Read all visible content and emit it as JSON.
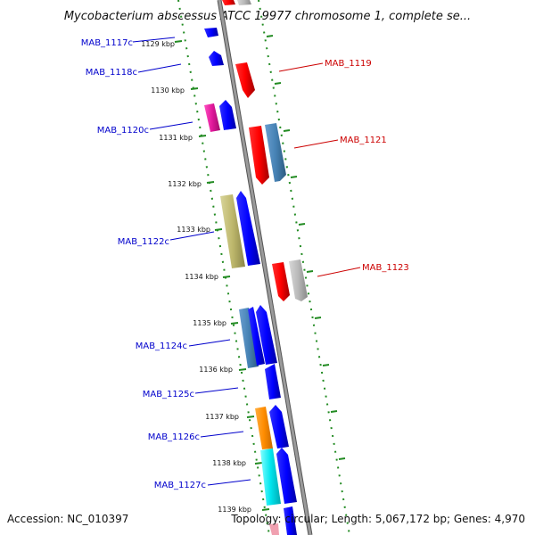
{
  "title": "Mycobacterium abscessus ATCC 19977 chromosome 1, complete se...",
  "footer": {
    "accession": "Accession: NC_010397",
    "topology": "Topology: circular; Length: 5,067,172 bp; Genes: 4,970"
  },
  "kbp_ticks": [
    "1129 kbp",
    "1130 kbp",
    "1131 kbp",
    "1132 kbp",
    "1133 kbp",
    "1134 kbp",
    "1135 kbp",
    "1136 kbp",
    "1137 kbp",
    "1138 kbp",
    "1139 kbp"
  ],
  "genes_minus": [
    {
      "label": "MAB_1117c",
      "color": "#0000cc"
    },
    {
      "label": "MAB_1118c",
      "color": "#0000cc"
    },
    {
      "label": "MAB_1120c",
      "color": "#0000cc"
    },
    {
      "label": "MAB_1122c",
      "color": "#0000cc"
    },
    {
      "label": "MAB_1124c",
      "color": "#0000cc"
    },
    {
      "label": "MAB_1125c",
      "color": "#0000cc"
    },
    {
      "label": "MAB_1126c",
      "color": "#0000cc"
    },
    {
      "label": "MAB_1127c",
      "color": "#0000cc"
    }
  ],
  "genes_plus": [
    {
      "label": "MAB_1119",
      "color": "#cc0000"
    },
    {
      "label": "MAB_1121",
      "color": "#cc0000"
    },
    {
      "label": "MAB_1123",
      "color": "#cc0000"
    }
  ],
  "colors": {
    "backbone": "#888888",
    "tick_green": "#228b22",
    "forward_cds": "#ff0000",
    "reverse_cds": "#0000ff",
    "steel_blue": "#4682b4",
    "silver": "#b0b0b0",
    "khaki": "#bdb76b",
    "magenta": "#e0179a",
    "orange": "#ff8c00",
    "cyan": "#00e5ee"
  }
}
